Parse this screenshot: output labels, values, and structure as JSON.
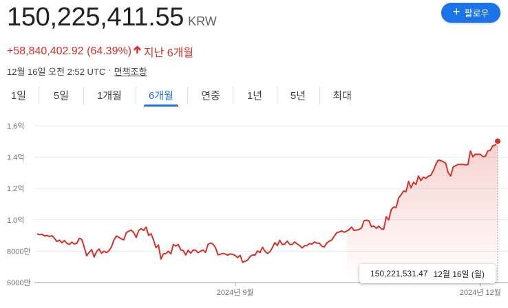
{
  "header": {
    "price": "150,225,411.55",
    "currency": "KRW",
    "change": "+58,840,402.92 (64.39%)",
    "change_arrow": "arrow-up-icon",
    "period": "지난 6개월",
    "timestamp": "12월 16일 오전 2:52 UTC",
    "separator": "·",
    "disclaimer": "면책조항",
    "follow_label": "팔로우",
    "follow_icon": "+"
  },
  "tabs": [
    {
      "label": "1일",
      "active": false
    },
    {
      "label": "5일",
      "active": false
    },
    {
      "label": "1개월",
      "active": false
    },
    {
      "label": "6개월",
      "active": true
    },
    {
      "label": "연중",
      "active": false
    },
    {
      "label": "1년",
      "active": false
    },
    {
      "label": "5년",
      "active": false
    },
    {
      "label": "최대",
      "active": false
    }
  ],
  "tooltip": {
    "value": "150,221,531.47",
    "date": "12월 16일 (월)"
  },
  "colors": {
    "line": "#d93025",
    "accent": "#1a73e8",
    "grid": "#e8eaed"
  },
  "chart_data": {
    "type": "line",
    "xlabel": "",
    "ylabel": "",
    "ylim": [
      60000000,
      160000000
    ],
    "y_ticks": [
      {
        "value": 60000000,
        "label": "6000만"
      },
      {
        "value": 80000000,
        "label": "8000만"
      },
      {
        "value": 100000000,
        "label": "1.0억"
      },
      {
        "value": 120000000,
        "label": "1.2억"
      },
      {
        "value": 140000000,
        "label": "1.4억"
      },
      {
        "value": 160000000,
        "label": "1.6억"
      }
    ],
    "x_ticks": [
      {
        "index": 80,
        "label": "2024년 9월"
      },
      {
        "index": 179,
        "label": "2024년 12월"
      }
    ],
    "grid": true,
    "series": [
      {
        "values": [
          91.1,
          90.5,
          90.8,
          89.7,
          90.1,
          89.4,
          89.9,
          88.1,
          86.2,
          87.0,
          85.4,
          86.8,
          85.1,
          84.3,
          85.8,
          84.6,
          85.0,
          88.2,
          87.6,
          82.7,
          77.1,
          79.2,
          81.0,
          76.3,
          79.8,
          81.4,
          78.7,
          80.0,
          79.1,
          80.3,
          82.7,
          87.2,
          89.7,
          88.9,
          87.9,
          87.3,
          91.8,
          92.8,
          93.4,
          91.8,
          88.7,
          93.2,
          94.4,
          93.3,
          95.4,
          90.1,
          91.2,
          87.2,
          82.3,
          84.0,
          75.0,
          78.3,
          78.5,
          80.0,
          78.3,
          84.2,
          83.3,
          84.3,
          80.8,
          80.5,
          77.6,
          80.6,
          78.7,
          80.8,
          80.6,
          79.0,
          80.1,
          80.7,
          79.2,
          84.4,
          85.2,
          84.5,
          82.4,
          77.7,
          78.1,
          78.6,
          78.2,
          77.4,
          78.3,
          78.0,
          77.3,
          75.9,
          77.4,
          72.9,
          73.6,
          74.3,
          76.6,
          77.6,
          77.5,
          80.2,
          79.1,
          82.6,
          80.0,
          78.5,
          79.6,
          82.3,
          85.5,
          83.6,
          86.9,
          84.2,
          84.6,
          86.5,
          84.3,
          84.3,
          85.9,
          84.6,
          83.6,
          82.1,
          83.5,
          83.6,
          84.9,
          84.5,
          85.9,
          85.1,
          85.1,
          83.1,
          82.7,
          85.3,
          86.4,
          87.1,
          89.6,
          91.8,
          92.3,
          93.0,
          92.1,
          92.8,
          93.8,
          95.4,
          93.3,
          93.5,
          93.8,
          94.8,
          99.4,
          99.8,
          99.4,
          95.7,
          96.0,
          94.6,
          96.0,
          94.2,
          94.0,
          102.0,
          100.0,
          106.4,
          108.2,
          107.9,
          114.0,
          116.0,
          118.4,
          118.0,
          124.5,
          120.5,
          124.0,
          122.6,
          128.0,
          125.1,
          127.3,
          126.5,
          127.9,
          128.4,
          131.4,
          135.3,
          138.1,
          137.8,
          137.1,
          136.1,
          130.2,
          128.0,
          133.7,
          134.6,
          135.3,
          135.3,
          135.3,
          135.1,
          135.2,
          144.0,
          140.2,
          141.9,
          141.8,
          141.9,
          140.4,
          140.5,
          144.0,
          144.3,
          147.3,
          147.7,
          150.2
        ]
      }
    ]
  }
}
